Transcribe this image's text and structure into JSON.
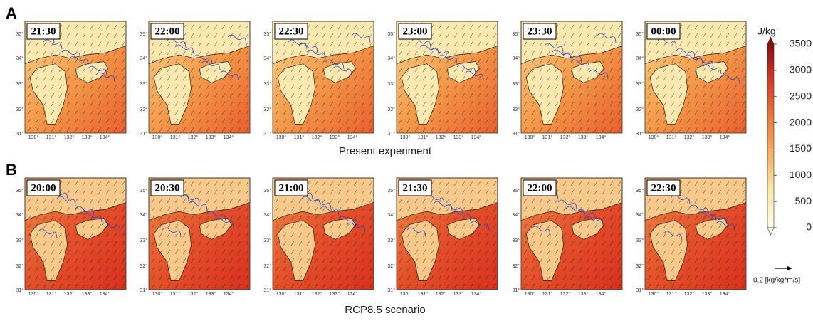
{
  "panel_a": {
    "label": "A",
    "caption": "Present experiment",
    "times": [
      "21:30",
      "22:00",
      "22:30",
      "23:00",
      "23:30",
      "00:00"
    ]
  },
  "panel_b": {
    "label": "B",
    "caption": "RCP8.5 scenario",
    "times": [
      "20:00",
      "20:30",
      "21:00",
      "21:30",
      "22:00",
      "22:30"
    ]
  },
  "map_axes": {
    "lat_labels": [
      "35°",
      "34°",
      "33°",
      "32°",
      "31°"
    ],
    "lon_labels": [
      "130°",
      "131°",
      "132°",
      "133°",
      "134°"
    ]
  },
  "colorbar": {
    "unit": "J/kg",
    "ticks": [
      0,
      500,
      1000,
      1500,
      2000,
      2500,
      3000,
      3500
    ]
  },
  "vector_reference": {
    "label": "0.2 [kg/kg*m/s]"
  }
}
